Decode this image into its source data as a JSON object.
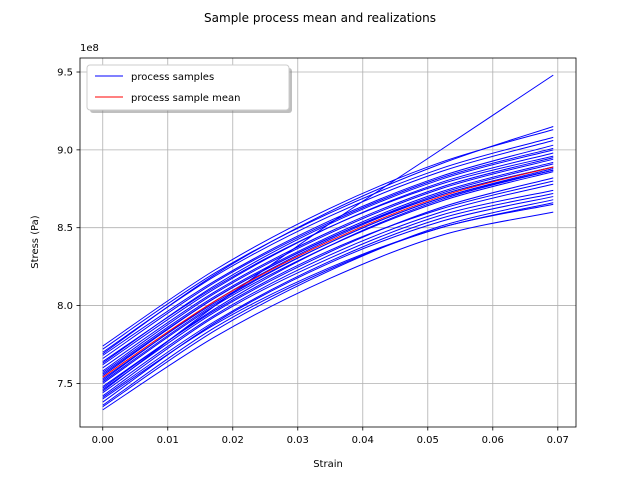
{
  "chart_data": {
    "type": "line",
    "title": "Sample process mean and realizations",
    "xlabel": "Strain",
    "ylabel": "Stress (Pa)",
    "y_offset_label": "1e8",
    "xlim": [
      -0.0035,
      0.0728
    ],
    "ylim": [
      7.22,
      9.59
    ],
    "x_ticks": [
      0.0,
      0.01,
      0.02,
      0.03,
      0.04,
      0.05,
      0.06,
      0.07
    ],
    "x_tick_labels": [
      "0.00",
      "0.01",
      "0.02",
      "0.03",
      "0.04",
      "0.05",
      "0.06",
      "0.07"
    ],
    "y_ticks": [
      7.5,
      8.0,
      8.5,
      9.0,
      9.5
    ],
    "y_tick_labels": [
      "7.5",
      "8.0",
      "8.5",
      "9.0",
      "9.5"
    ],
    "grid": true,
    "legend_position": "top-left",
    "x": [
      0.0,
      0.0173,
      0.0347,
      0.052,
      0.0693
    ],
    "series": [
      {
        "name": "process samples",
        "color": "#0000ff",
        "values": [
          7.33,
          7.8,
          8.17,
          8.45,
          8.6
        ]
      },
      {
        "color": "#0000ff",
        "values": [
          7.36,
          7.86,
          8.23,
          8.5,
          8.65
        ]
      },
      {
        "color": "#0000ff",
        "values": [
          7.38,
          7.89,
          8.27,
          8.54,
          8.7
        ]
      },
      {
        "color": "#0000ff",
        "values": [
          7.4,
          7.88,
          8.24,
          8.5,
          8.66
        ]
      },
      {
        "color": "#0000ff",
        "values": [
          7.42,
          7.93,
          8.3,
          8.58,
          8.74
        ]
      },
      {
        "color": "#0000ff",
        "values": [
          7.44,
          7.94,
          8.32,
          8.6,
          8.78
        ]
      },
      {
        "color": "#0000ff",
        "values": [
          7.46,
          7.96,
          8.34,
          8.63,
          8.82
        ]
      },
      {
        "color": "#0000ff",
        "values": [
          7.48,
          7.97,
          8.35,
          8.62,
          8.8
        ]
      },
      {
        "color": "#0000ff",
        "values": [
          7.5,
          8.0,
          8.38,
          8.67,
          8.86
        ]
      },
      {
        "color": "#0000ff",
        "values": [
          7.51,
          8.01,
          8.4,
          8.69,
          8.88
        ]
      },
      {
        "color": "#0000ff",
        "values": [
          7.53,
          8.02,
          8.4,
          8.69,
          8.87
        ]
      },
      {
        "color": "#0000ff",
        "values": [
          7.55,
          8.05,
          8.43,
          8.72,
          8.91
        ]
      },
      {
        "color": "#0000ff",
        "values": [
          7.56,
          8.05,
          8.43,
          8.71,
          8.89
        ]
      },
      {
        "color": "#0000ff",
        "values": [
          7.58,
          8.08,
          8.46,
          8.75,
          8.94
        ]
      },
      {
        "color": "#0000ff",
        "values": [
          7.6,
          8.09,
          8.47,
          8.76,
          8.95
        ]
      },
      {
        "color": "#0000ff",
        "values": [
          7.62,
          8.11,
          8.5,
          8.79,
          8.98
        ]
      },
      {
        "color": "#0000ff",
        "values": [
          7.64,
          8.12,
          8.5,
          8.78,
          8.96
        ]
      },
      {
        "color": "#0000ff",
        "values": [
          7.66,
          8.15,
          8.53,
          8.82,
          9.01
        ]
      },
      {
        "color": "#0000ff",
        "values": [
          7.68,
          8.16,
          8.54,
          8.83,
          9.03
        ]
      },
      {
        "color": "#0000ff",
        "values": [
          7.7,
          8.19,
          8.57,
          8.86,
          9.06
        ]
      },
      {
        "color": "#0000ff",
        "values": [
          7.72,
          8.21,
          8.59,
          8.88,
          9.08
        ]
      },
      {
        "color": "#0000ff",
        "values": [
          7.74,
          8.23,
          8.62,
          8.92,
          9.13
        ]
      },
      {
        "color": "#0000ff",
        "values": [
          7.45,
          8.0,
          8.52,
          9.0,
          9.48
        ]
      },
      {
        "color": "#0000ff",
        "values": [
          7.35,
          7.84,
          8.22,
          8.51,
          8.68
        ]
      },
      {
        "color": "#0000ff",
        "values": [
          7.47,
          7.98,
          8.38,
          8.68,
          8.87
        ]
      },
      {
        "color": "#0000ff",
        "values": [
          7.57,
          8.06,
          8.44,
          8.73,
          8.92
        ]
      },
      {
        "color": "#0000ff",
        "values": [
          7.63,
          8.13,
          8.52,
          8.81,
          9.0
        ]
      },
      {
        "color": "#0000ff",
        "values": [
          7.41,
          7.9,
          8.28,
          8.56,
          8.72
        ]
      },
      {
        "color": "#0000ff",
        "values": [
          7.52,
          8.03,
          8.42,
          8.71,
          8.89
        ]
      },
      {
        "color": "#0000ff",
        "values": [
          7.69,
          8.2,
          8.6,
          8.91,
          9.15
        ]
      },
      {
        "name": "process sample mean",
        "color": "#ff0000",
        "values": [
          7.54,
          8.03,
          8.41,
          8.7,
          8.89
        ]
      }
    ]
  }
}
